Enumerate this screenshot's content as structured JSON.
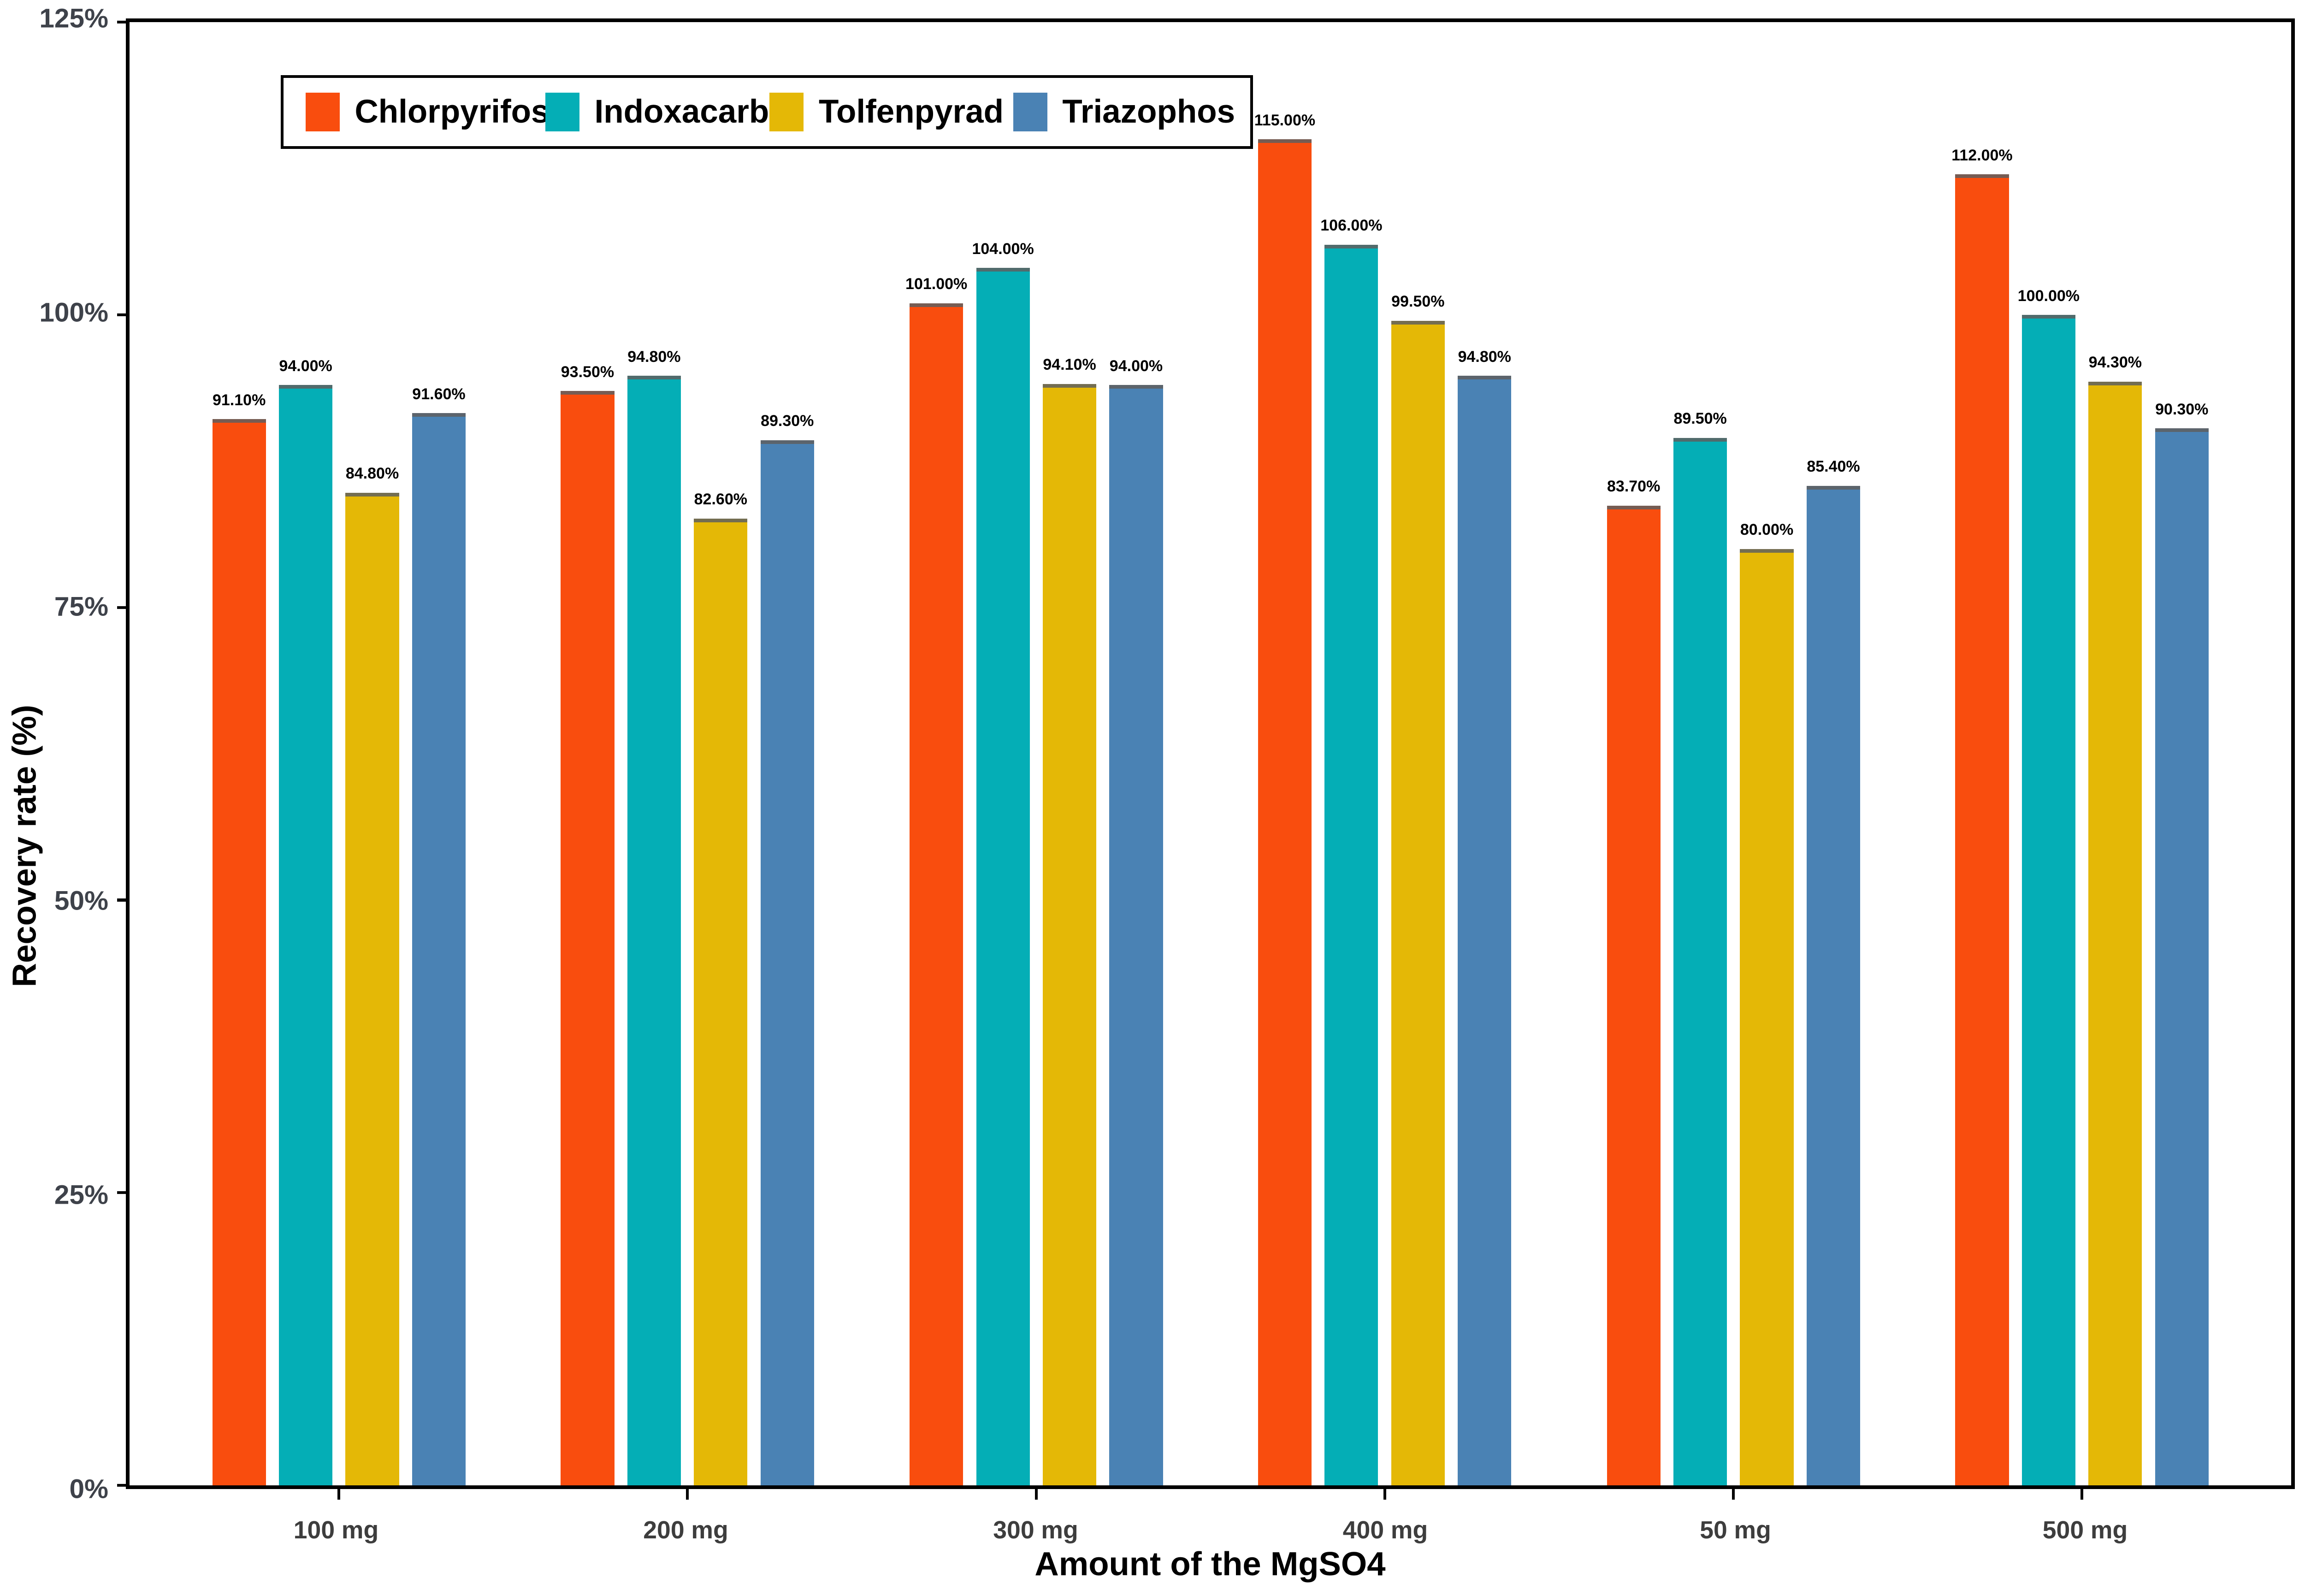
{
  "chart_data": {
    "type": "bar",
    "title": "",
    "xlabel": "Amount of the MgSO4",
    "ylabel": "Recovery rate (%)",
    "categories": [
      "100 mg",
      "200 mg",
      "300 mg",
      "400 mg",
      "50 mg",
      "500 mg"
    ],
    "y_ticks": [
      "0%",
      "25%",
      "50%",
      "75%",
      "100%",
      "125%"
    ],
    "ylim": [
      0,
      125
    ],
    "grid": false,
    "legend_position": "top-left-inside",
    "panel_border_color": "#000000",
    "tick_label_color": "#3e424a",
    "series": [
      {
        "name": "Chlorpyrifos",
        "color": "#F94D0E",
        "values": [
          91.1,
          93.5,
          101.0,
          115.0,
          83.7,
          112.0
        ],
        "labels": [
          "91.10%",
          "93.50%",
          "101.00%",
          "115.00%",
          "83.70%",
          "112.00%"
        ]
      },
      {
        "name": "Indoxacarb",
        "color": "#04AEB6",
        "values": [
          94.0,
          94.8,
          104.0,
          106.0,
          89.5,
          100.0
        ],
        "labels": [
          "94.00%",
          "94.80%",
          "104.00%",
          "106.00%",
          "89.50%",
          "100.00%"
        ]
      },
      {
        "name": "Tolfenpyrad",
        "color": "#E4B806",
        "values": [
          84.8,
          82.6,
          94.1,
          99.5,
          80.0,
          94.3
        ],
        "labels": [
          "84.80%",
          "82.60%",
          "94.10%",
          "99.50%",
          "80.00%",
          "94.30%"
        ]
      },
      {
        "name": "Triazophos",
        "color": "#4A82B4",
        "values": [
          91.6,
          89.3,
          94.0,
          94.8,
          85.4,
          90.3
        ],
        "labels": [
          "91.60%",
          "89.30%",
          "94.00%",
          "94.80%",
          "85.40%",
          "90.30%"
        ]
      }
    ]
  }
}
